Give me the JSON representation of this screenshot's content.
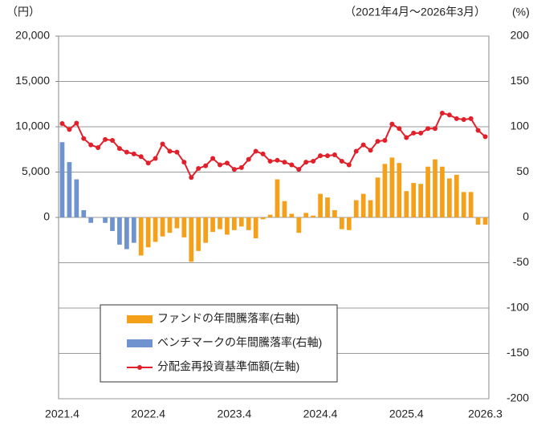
{
  "chart_data": {
    "type": "bar-line",
    "left_unit": "（円）",
    "right_unit": "(%)",
    "period": "（2021年4月～2026年3月）",
    "categories": [
      "2021.4",
      null,
      null,
      null,
      null,
      null,
      null,
      null,
      null,
      null,
      null,
      null,
      "2022.4",
      null,
      null,
      null,
      null,
      null,
      null,
      null,
      null,
      null,
      null,
      null,
      "2023.4",
      null,
      null,
      null,
      null,
      null,
      null,
      null,
      null,
      null,
      null,
      null,
      "2024.4",
      null,
      null,
      null,
      null,
      null,
      null,
      null,
      null,
      null,
      null,
      null,
      "2025.4",
      null,
      null,
      null,
      null,
      null,
      null,
      null,
      null,
      null,
      null,
      "2026.3"
    ],
    "ylim": [
      -20000,
      20000
    ],
    "yticks": [
      0,
      {
        "value": 5000,
        "label": "5,000"
      },
      {
        "value": 10000,
        "label": "10,000"
      },
      {
        "value": 15000,
        "label": "15,000"
      },
      {
        "value": 20000,
        "label": "20,000"
      }
    ],
    "y2lim": [
      -200,
      200
    ],
    "y2ticks": [
      -200,
      -150,
      -100,
      -50,
      0,
      50,
      100,
      150,
      200
    ],
    "grid": true,
    "series": [
      {
        "name": "ファンドの年間騰落率(右軸)",
        "kind": "bar",
        "axis": "y2",
        "color": "#f5a01a",
        "values": [
          null,
          null,
          null,
          null,
          null,
          null,
          null,
          null,
          null,
          null,
          null,
          -42,
          -33,
          -27,
          -21,
          -17,
          -12,
          -22,
          -49,
          -37,
          -28,
          -16,
          -13,
          -19,
          -14,
          -10,
          -14,
          -23,
          -2,
          3,
          42,
          18,
          4,
          -17,
          5,
          2,
          26,
          22,
          8,
          -13,
          -14,
          19,
          26,
          19,
          44,
          59,
          66,
          60,
          29,
          38,
          37,
          56,
          64,
          56,
          43,
          47,
          28,
          28,
          -8,
          -8
        ]
      },
      {
        "name": "ベンチマークの年間騰落率(右軸)",
        "kind": "bar",
        "axis": "y2",
        "color": "#6f93cf",
        "values": [
          83,
          61,
          42,
          8,
          -6,
          0,
          -6,
          -15,
          -30,
          -35,
          -28,
          null,
          null,
          null,
          null,
          null,
          null,
          null,
          null,
          null,
          null,
          null,
          null,
          null,
          null,
          null,
          null,
          null,
          null,
          null,
          null,
          null,
          null,
          null,
          null,
          null,
          null,
          null,
          null,
          null,
          null,
          null,
          null,
          null,
          null,
          null,
          null,
          null,
          null,
          null,
          null,
          null,
          null,
          null,
          null,
          null,
          null,
          null,
          null,
          null
        ]
      },
      {
        "name": "分配金再投資基準価額(左軸)",
        "kind": "line",
        "axis": "y",
        "color": "#e0202a",
        "values": [
          10350,
          9700,
          10400,
          8700,
          8000,
          7700,
          8600,
          8500,
          7600,
          7200,
          7000,
          6700,
          6000,
          6500,
          8100,
          7300,
          7200,
          6100,
          4400,
          5400,
          5700,
          6500,
          5800,
          6000,
          5300,
          5500,
          6400,
          7300,
          7000,
          6200,
          6300,
          6100,
          5800,
          5300,
          6100,
          6200,
          6800,
          6800,
          6900,
          6200,
          5800,
          7300,
          8000,
          7400,
          8400,
          8500,
          10300,
          9800,
          8800,
          9300,
          9300,
          9800,
          9800,
          11500,
          11300,
          10900,
          10800,
          10900,
          9600,
          8900
        ]
      }
    ]
  }
}
